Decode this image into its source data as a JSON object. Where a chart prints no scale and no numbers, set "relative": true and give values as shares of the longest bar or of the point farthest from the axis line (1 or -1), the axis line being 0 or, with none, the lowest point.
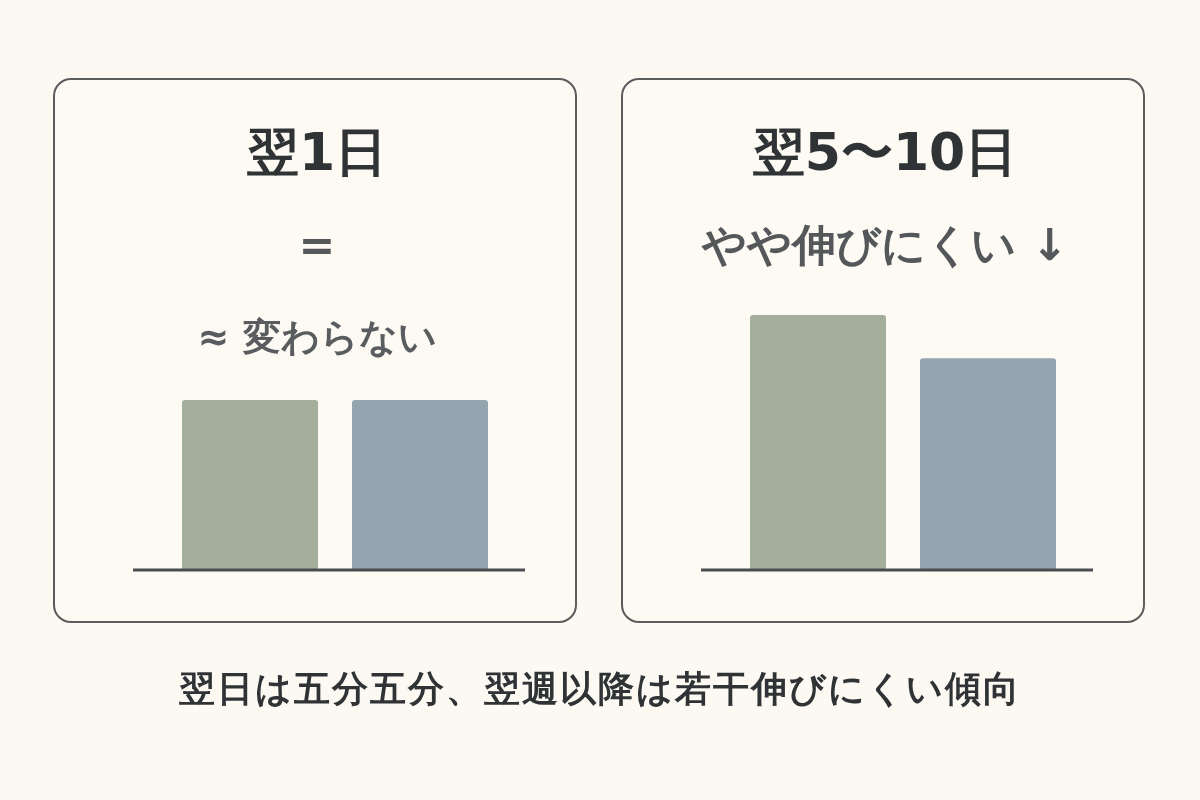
{
  "chart_data": [
    {
      "type": "bar",
      "title": "翌1日",
      "subtitle": "=",
      "annotations": [
        "≈ 変わらない"
      ],
      "categories": [
        null,
        null
      ],
      "values": [
        1,
        1
      ],
      "colors": [
        "#a3ae9c",
        "#95a5b0"
      ],
      "relative": true
    },
    {
      "type": "bar",
      "title": "翌5〜10日",
      "subtitle": "やや伸びにくい ↓",
      "categories": [
        null,
        null
      ],
      "values": [
        1,
        0.83
      ],
      "colors": [
        "#a3ae9c",
        "#95a5b0"
      ],
      "relative": true
    },
    {
      "type": "other",
      "title": "翌日は五分五分、翌週以降は若干伸びにくい傾向"
    }
  ]
}
